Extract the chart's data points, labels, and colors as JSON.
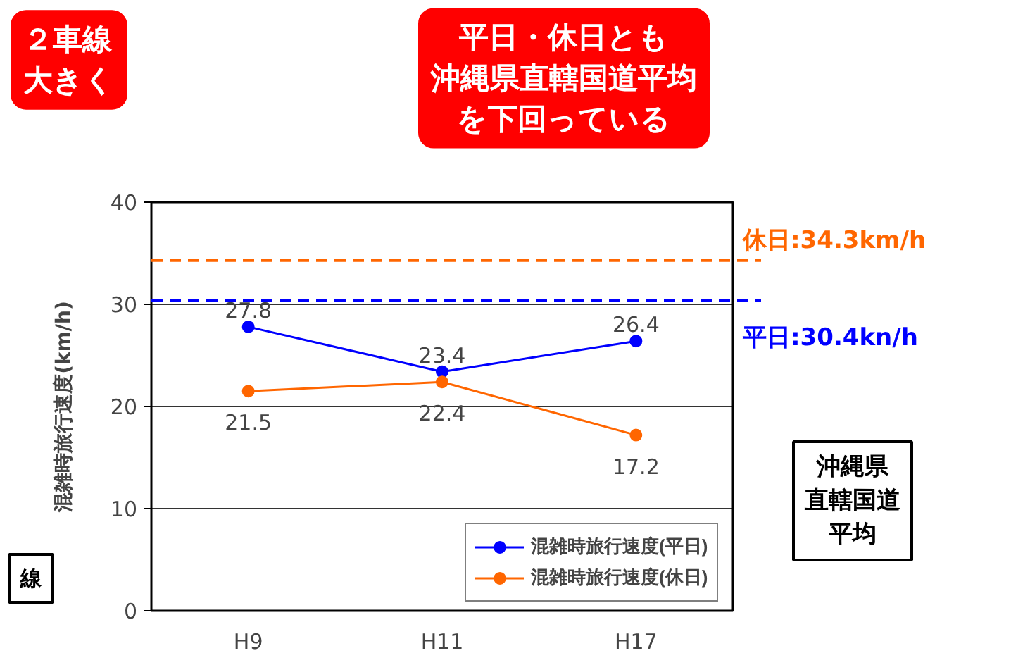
{
  "chart_data": {
    "type": "line",
    "ylabel": "混雑時旅行速度(km/h)",
    "categories": [
      "H9",
      "H11",
      "H17"
    ],
    "series": [
      {
        "name": "混雑時旅行速度(平日)",
        "color": "#0000ff",
        "values": [
          27.8,
          23.4,
          26.4
        ]
      },
      {
        "name": "混雑時旅行速度(休日)",
        "color": "#ff6600",
        "values": [
          21.5,
          22.4,
          17.2
        ]
      }
    ],
    "ylim": [
      0,
      40
    ],
    "yticks": [
      0,
      10,
      20,
      30,
      40
    ],
    "grid": "y",
    "legend": "bottom right",
    "marker": "circle",
    "line_style": "solid",
    "data_labels": true,
    "ref_lines": [
      {
        "axis": "y",
        "value": 34.3,
        "label": "休日:34.3km/h",
        "color": "#ff6600",
        "line_style": "dashed"
      },
      {
        "axis": "y",
        "value": 30.4,
        "label": "平日:30.4kn/h",
        "color": "#0000ff",
        "line_style": "dashed"
      }
    ],
    "annotations": [
      "平日・休日とも沖縄県直轄国道平均を下回っている",
      "沖縄県直轄国道平均",
      "２車線大きく",
      "線"
    ]
  }
}
